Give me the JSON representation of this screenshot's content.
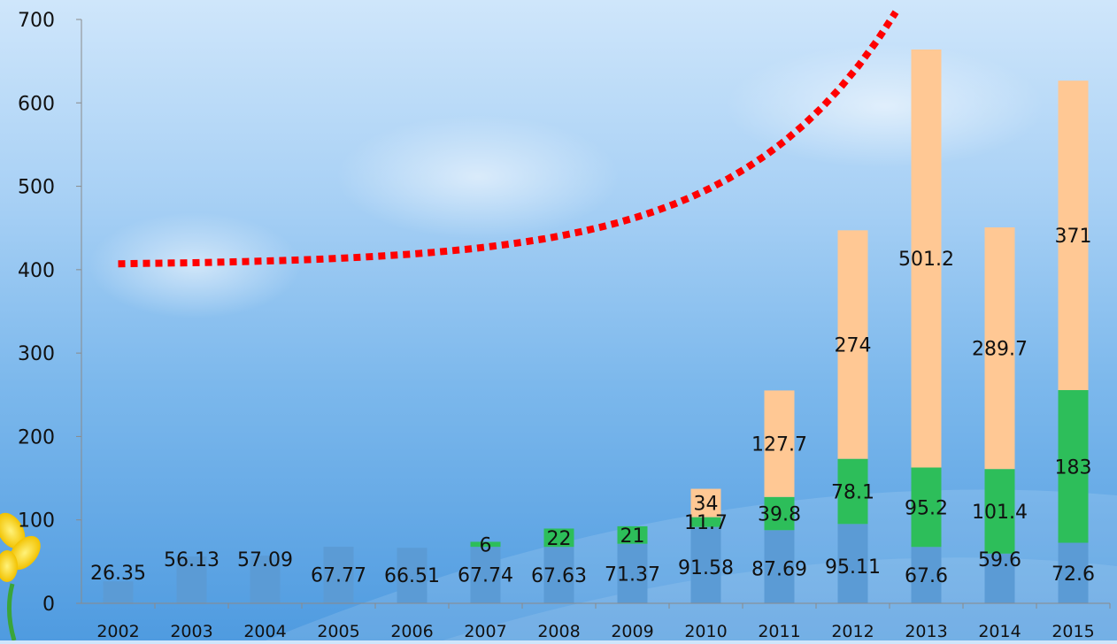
{
  "chart_data": {
    "type": "bar",
    "stacked": true,
    "categories": [
      "2002",
      "2003",
      "2004",
      "2005",
      "2006",
      "2007",
      "2008",
      "2009",
      "2010",
      "2011",
      "2012",
      "2013",
      "2014",
      "2015"
    ],
    "series": [
      {
        "values": [
          26.35,
          56.13,
          57.09,
          67.77,
          66.51,
          67.74,
          67.63,
          71.37,
          91.58,
          87.69,
          95.11,
          67.6,
          59.6,
          72.6
        ],
        "color": "#5b9bd5"
      },
      {
        "values": [
          null,
          null,
          null,
          null,
          null,
          6,
          22,
          21,
          11.7,
          39.8,
          78.1,
          95.2,
          101.4,
          183
        ],
        "color": "#2dbe5a"
      },
      {
        "values": [
          null,
          null,
          null,
          null,
          null,
          null,
          null,
          null,
          34,
          127.7,
          274,
          501.2,
          289.7,
          371
        ],
        "color": "#ffc894"
      }
    ],
    "trendline": {
      "style": "dotted",
      "color": "#ff0000"
    },
    "yticks": [
      0,
      100,
      200,
      300,
      400,
      500,
      600,
      700
    ],
    "ylim": [
      0,
      700
    ],
    "title": "",
    "xlabel": "",
    "ylabel": ""
  }
}
